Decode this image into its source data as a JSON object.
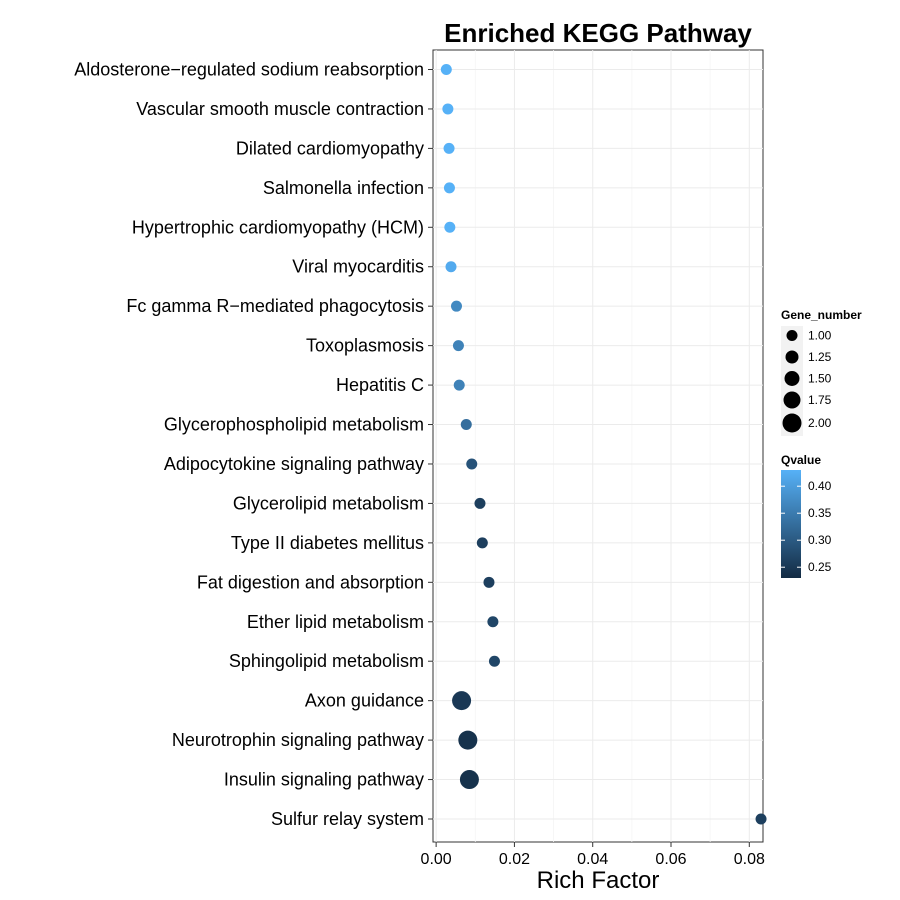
{
  "chart_data": {
    "type": "scatter",
    "title": "Enriched KEGG Pathway",
    "xlabel": "Rich Factor",
    "ylabel": "",
    "xlim": [
      -0.0008,
      0.0835
    ],
    "x_ticks": [
      "0.00",
      "0.02",
      "0.04",
      "0.06",
      "0.08"
    ],
    "x_tick_values": [
      0.0,
      0.02,
      0.04,
      0.06,
      0.08
    ],
    "grid": true,
    "legend_position": "right",
    "categories": [
      "Aldosterone−regulated sodium reabsorption",
      "Vascular smooth muscle contraction",
      "Dilated cardiomyopathy",
      "Salmonella infection",
      "Hypertrophic cardiomyopathy (HCM)",
      "Viral myocarditis",
      "Fc gamma R−mediated phagocytosis",
      "Toxoplasmosis",
      "Hepatitis C",
      "Glycerophospholipid metabolism",
      "Adipocytokine signaling pathway",
      "Glycerolipid metabolism",
      "Type II diabetes mellitus",
      "Fat digestion and absorption",
      "Ether lipid metabolism",
      "Sphingolipid metabolism",
      "Axon guidance",
      "Neurotrophin signaling pathway",
      "Insulin signaling pathway",
      "Sulfur relay system"
    ],
    "points": [
      {
        "pathway": "Aldosterone−regulated sodium reabsorption",
        "rich_factor": 0.0026,
        "gene_number": 1,
        "qvalue": 0.43
      },
      {
        "pathway": "Vascular smooth muscle contraction",
        "rich_factor": 0.003,
        "gene_number": 1,
        "qvalue": 0.43
      },
      {
        "pathway": "Dilated cardiomyopathy",
        "rich_factor": 0.0033,
        "gene_number": 1,
        "qvalue": 0.43
      },
      {
        "pathway": "Salmonella infection",
        "rich_factor": 0.0034,
        "gene_number": 1,
        "qvalue": 0.43
      },
      {
        "pathway": "Hypertrophic cardiomyopathy (HCM)",
        "rich_factor": 0.0035,
        "gene_number": 1,
        "qvalue": 0.43
      },
      {
        "pathway": "Viral myocarditis",
        "rich_factor": 0.0038,
        "gene_number": 1,
        "qvalue": 0.42
      },
      {
        "pathway": "Fc gamma R−mediated phagocytosis",
        "rich_factor": 0.0052,
        "gene_number": 1,
        "qvalue": 0.37
      },
      {
        "pathway": "Toxoplasmosis",
        "rich_factor": 0.0057,
        "gene_number": 1,
        "qvalue": 0.36
      },
      {
        "pathway": "Hepatitis C",
        "rich_factor": 0.0059,
        "gene_number": 1,
        "qvalue": 0.36
      },
      {
        "pathway": "Glycerophospholipid metabolism",
        "rich_factor": 0.0077,
        "gene_number": 1,
        "qvalue": 0.33
      },
      {
        "pathway": "Adipocytokine signaling pathway",
        "rich_factor": 0.0091,
        "gene_number": 1,
        "qvalue": 0.29
      },
      {
        "pathway": "Glycerolipid metabolism",
        "rich_factor": 0.0112,
        "gene_number": 1,
        "qvalue": 0.26
      },
      {
        "pathway": "Type II diabetes mellitus",
        "rich_factor": 0.0118,
        "gene_number": 1,
        "qvalue": 0.26
      },
      {
        "pathway": "Fat digestion and absorption",
        "rich_factor": 0.0135,
        "gene_number": 1,
        "qvalue": 0.26
      },
      {
        "pathway": "Ether lipid metabolism",
        "rich_factor": 0.0145,
        "gene_number": 1,
        "qvalue": 0.27
      },
      {
        "pathway": "Sphingolipid metabolism",
        "rich_factor": 0.0149,
        "gene_number": 1,
        "qvalue": 0.27
      },
      {
        "pathway": "Axon guidance",
        "rich_factor": 0.0065,
        "gene_number": 2,
        "qvalue": 0.25
      },
      {
        "pathway": "Neurotrophin signaling pathway",
        "rich_factor": 0.0081,
        "gene_number": 2,
        "qvalue": 0.24
      },
      {
        "pathway": "Insulin signaling pathway",
        "rich_factor": 0.0085,
        "gene_number": 2,
        "qvalue": 0.24
      },
      {
        "pathway": "Sulfur relay system",
        "rich_factor": 0.083,
        "gene_number": 1,
        "qvalue": 0.26
      }
    ],
    "size_legend": {
      "title": "Gene_number",
      "entries": [
        "1.00",
        "1.25",
        "1.50",
        "1.75",
        "2.00"
      ],
      "values": [
        1.0,
        1.25,
        1.5,
        1.75,
        2.0
      ]
    },
    "color_legend": {
      "title": "Qvalue",
      "ticks": [
        "0.40",
        "0.35",
        "0.30",
        "0.25"
      ],
      "tick_values": [
        0.4,
        0.35,
        0.3,
        0.25
      ],
      "range": [
        0.23,
        0.43
      ],
      "low_color": "#132B43",
      "high_color": "#56B1F7"
    }
  }
}
